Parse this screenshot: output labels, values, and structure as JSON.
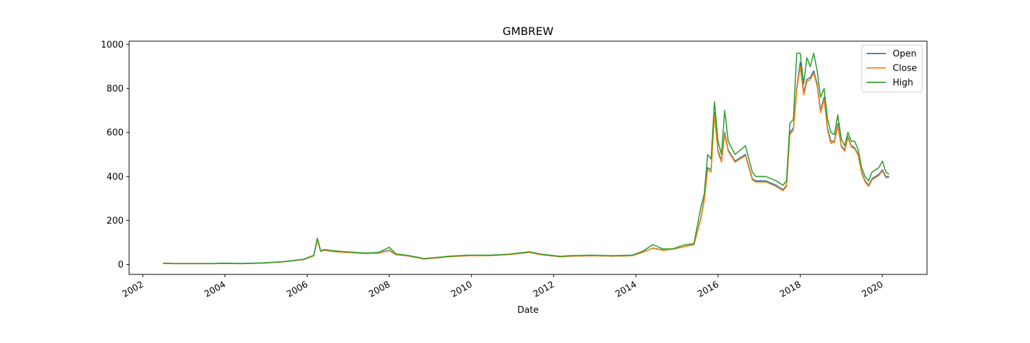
{
  "chart_data": {
    "type": "line",
    "title": "GMBREW",
    "xlabel": "Date",
    "ylabel": "",
    "xlim": [
      "2001-09-01",
      "2021-02-01"
    ],
    "ylim": [
      -45,
      1015
    ],
    "x_ticks": [
      "2002",
      "2004",
      "2006",
      "2008",
      "2010",
      "2012",
      "2014",
      "2016",
      "2018",
      "2020"
    ],
    "y_ticks": [
      0,
      200,
      400,
      600,
      800,
      1000
    ],
    "legend_position": "top-right",
    "x": [
      "2002-07",
      "2002-10",
      "2003-01",
      "2003-06",
      "2003-10",
      "2003-12",
      "2004-06",
      "2004-12",
      "2005-06",
      "2005-12",
      "2006-03",
      "2006-04",
      "2006-05",
      "2006-06",
      "2006-09",
      "2007-01",
      "2007-06",
      "2007-10",
      "2008-01",
      "2008-03",
      "2008-06",
      "2008-09",
      "2008-11",
      "2009-03",
      "2009-06",
      "2009-12",
      "2010-06",
      "2010-12",
      "2011-06",
      "2011-09",
      "2011-12",
      "2012-03",
      "2012-06",
      "2012-12",
      "2013-06",
      "2013-12",
      "2014-03",
      "2014-06",
      "2014-09",
      "2014-12",
      "2015-03",
      "2015-06",
      "2015-08",
      "2015-09",
      "2015-10",
      "2015-11",
      "2015-12",
      "2016-01",
      "2016-02",
      "2016-03",
      "2016-04",
      "2016-06",
      "2016-09",
      "2016-11",
      "2016-12",
      "2017-03",
      "2017-06",
      "2017-08",
      "2017-09",
      "2017-10",
      "2017-11",
      "2017-12",
      "2018-01",
      "2018-02",
      "2018-03",
      "2018-04",
      "2018-05",
      "2018-06",
      "2018-07",
      "2018-08",
      "2018-09",
      "2018-10",
      "2018-11",
      "2018-12",
      "2019-01",
      "2019-02",
      "2019-03",
      "2019-04",
      "2019-05",
      "2019-06",
      "2019-07",
      "2019-08",
      "2019-09",
      "2019-10",
      "2019-11",
      "2019-12",
      "2020-01",
      "2020-02",
      "2020-03"
    ],
    "series": [
      {
        "name": "Open",
        "color": "#1f77b4",
        "values": [
          5,
          4,
          4,
          4,
          4,
          5,
          4,
          6,
          12,
          22,
          40,
          115,
          60,
          65,
          60,
          55,
          50,
          52,
          65,
          45,
          40,
          32,
          25,
          30,
          35,
          40,
          40,
          45,
          55,
          45,
          40,
          35,
          38,
          40,
          38,
          40,
          55,
          75,
          65,
          70,
          80,
          90,
          210,
          300,
          440,
          430,
          690,
          520,
          470,
          600,
          520,
          470,
          500,
          390,
          380,
          380,
          360,
          340,
          360,
          600,
          620,
          800,
          920,
          780,
          840,
          850,
          880,
          820,
          700,
          760,
          620,
          560,
          560,
          640,
          540,
          520,
          580,
          540,
          530,
          500,
          420,
          380,
          360,
          390,
          400,
          410,
          430,
          400,
          400
        ]
      },
      {
        "name": "Close",
        "color": "#ff7f0e",
        "values": [
          5,
          4,
          4,
          4,
          4,
          5,
          4,
          6,
          12,
          22,
          40,
          110,
          60,
          64,
          58,
          54,
          50,
          52,
          63,
          44,
          40,
          32,
          25,
          30,
          35,
          40,
          40,
          45,
          55,
          45,
          40,
          35,
          38,
          40,
          38,
          40,
          55,
          74,
          64,
          70,
          80,
          90,
          205,
          290,
          430,
          420,
          680,
          510,
          465,
          590,
          515,
          465,
          495,
          385,
          375,
          375,
          355,
          335,
          355,
          590,
          610,
          790,
          900,
          770,
          830,
          840,
          870,
          810,
          690,
          750,
          610,
          550,
          555,
          630,
          535,
          515,
          575,
          535,
          525,
          495,
          415,
          375,
          355,
          385,
          395,
          405,
          425,
          395,
          395
        ]
      },
      {
        "name": "High",
        "color": "#2ca02c",
        "values": [
          6,
          5,
          5,
          5,
          5,
          6,
          5,
          7,
          13,
          24,
          42,
          120,
          62,
          68,
          62,
          57,
          52,
          55,
          78,
          48,
          42,
          34,
          27,
          32,
          37,
          42,
          42,
          47,
          58,
          48,
          42,
          37,
          40,
          42,
          40,
          42,
          60,
          90,
          70,
          72,
          88,
          95,
          260,
          320,
          500,
          480,
          740,
          560,
          500,
          700,
          560,
          500,
          540,
          420,
          400,
          400,
          380,
          360,
          380,
          640,
          660,
          960,
          960,
          820,
          940,
          900,
          960,
          880,
          760,
          800,
          660,
          600,
          590,
          680,
          570,
          540,
          600,
          560,
          560,
          520,
          440,
          400,
          380,
          420,
          430,
          440,
          470,
          420,
          410
        ]
      }
    ]
  }
}
